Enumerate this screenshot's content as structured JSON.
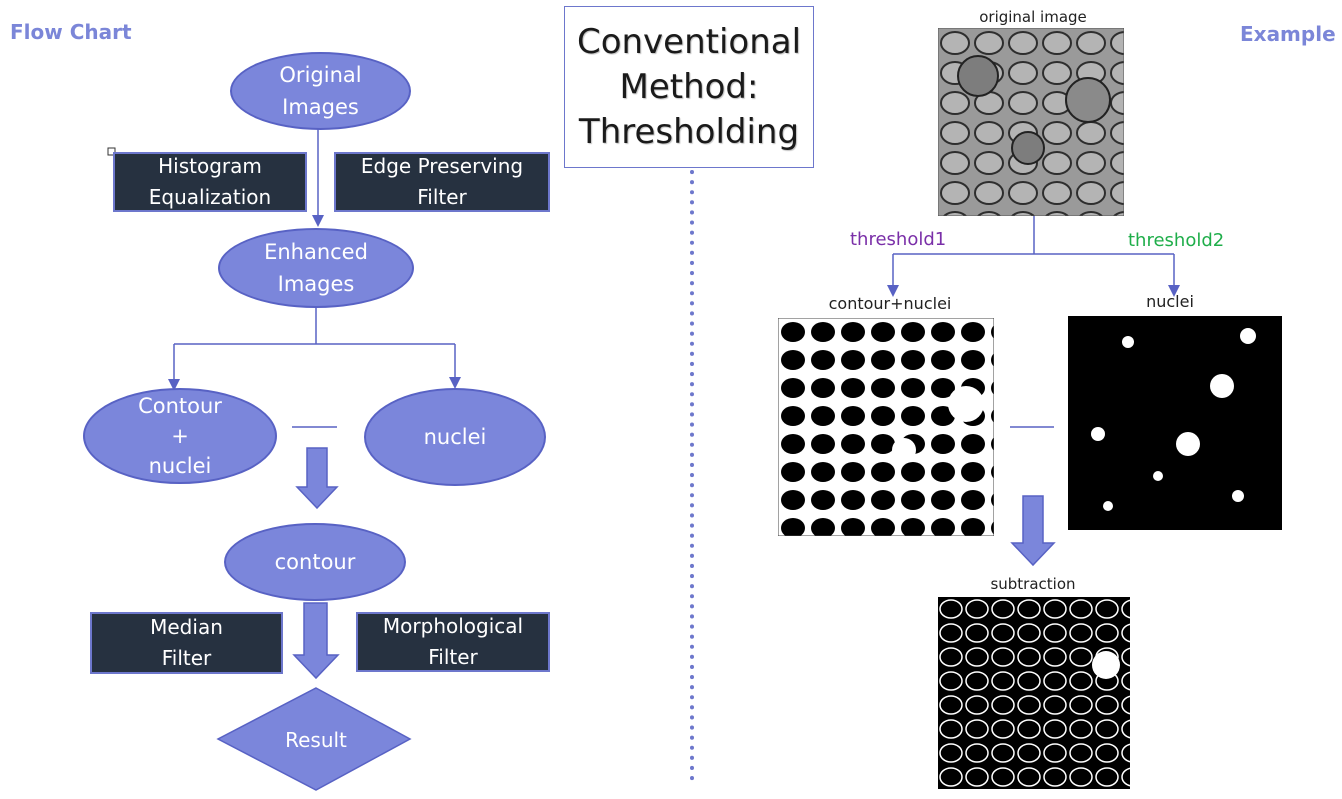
{
  "headers": {
    "left": "Flow Chart",
    "right": "Example"
  },
  "title": {
    "line1": "Conventional",
    "line2": "Method:",
    "line3": "Thresholding"
  },
  "flow": {
    "original_images": {
      "line1": "Original",
      "line2": "Images"
    },
    "histogram": {
      "line1": "Histogram",
      "line2": "Equalization"
    },
    "edge_filter": {
      "line1": "Edge Preserving",
      "line2": "Filter"
    },
    "enhanced_images": {
      "line1": "Enhanced",
      "line2": "Images"
    },
    "contour_nuclei": {
      "line1": "Contour",
      "line2": "+",
      "line3": "nuclei"
    },
    "nuclei": "nuclei",
    "contour": "contour",
    "median": {
      "line1": "Median",
      "line2": "Filter"
    },
    "morph": {
      "line1": "Morphological",
      "line2": "Filter"
    },
    "result": "Result"
  },
  "example": {
    "original_label": "original image",
    "threshold1": "threshold1",
    "threshold2": "threshold2",
    "contour_nuclei_label": "contour+nuclei",
    "nuclei_label": "nuclei",
    "subtraction_label": "subtraction"
  },
  "colors": {
    "accent": "#7b86db",
    "dark_box": "#263140",
    "threshold1": "#7a2fa8",
    "threshold2": "#1fae4a"
  }
}
